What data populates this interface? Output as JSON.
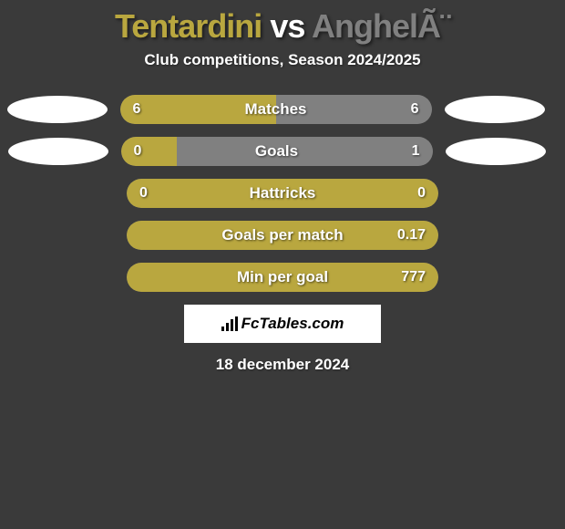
{
  "title": {
    "player1": "Tentardini",
    "vs": "vs",
    "player2": "AnghelÃ¨",
    "player1_color": "#b9a73f",
    "vs_color": "#ffffff",
    "player2_color": "#808080"
  },
  "subtitle": "Club competitions, Season 2024/2025",
  "fill_color_left": "#b9a73f",
  "fill_color_right": "#808080",
  "bar_bg": "#6f6f6f",
  "rows": [
    {
      "label": "Matches",
      "left_val": "6",
      "right_val": "6",
      "left_pct": 50,
      "right_pct": 50,
      "show_ellipses": true,
      "ellipse_left_offset": "-55px",
      "ellipse_right_offset": "-40px"
    },
    {
      "label": "Goals",
      "left_val": "0",
      "right_val": "1",
      "left_pct": 18,
      "right_pct": 82,
      "show_ellipses": true,
      "ellipse_left_offset": "-35px",
      "ellipse_right_offset": "-22px"
    },
    {
      "label": "Hattricks",
      "left_val": "0",
      "right_val": "0",
      "left_pct": 100,
      "right_pct": 0,
      "full_left": true,
      "show_ellipses": false
    },
    {
      "label": "Goals per match",
      "left_val": "",
      "right_val": "0.17",
      "left_pct": 100,
      "right_pct": 0,
      "full_left": true,
      "show_ellipses": false
    },
    {
      "label": "Min per goal",
      "left_val": "",
      "right_val": "777",
      "left_pct": 100,
      "right_pct": 0,
      "full_left": true,
      "show_ellipses": false
    }
  ],
  "brand": "FcTables.com",
  "date": "18 december 2024"
}
